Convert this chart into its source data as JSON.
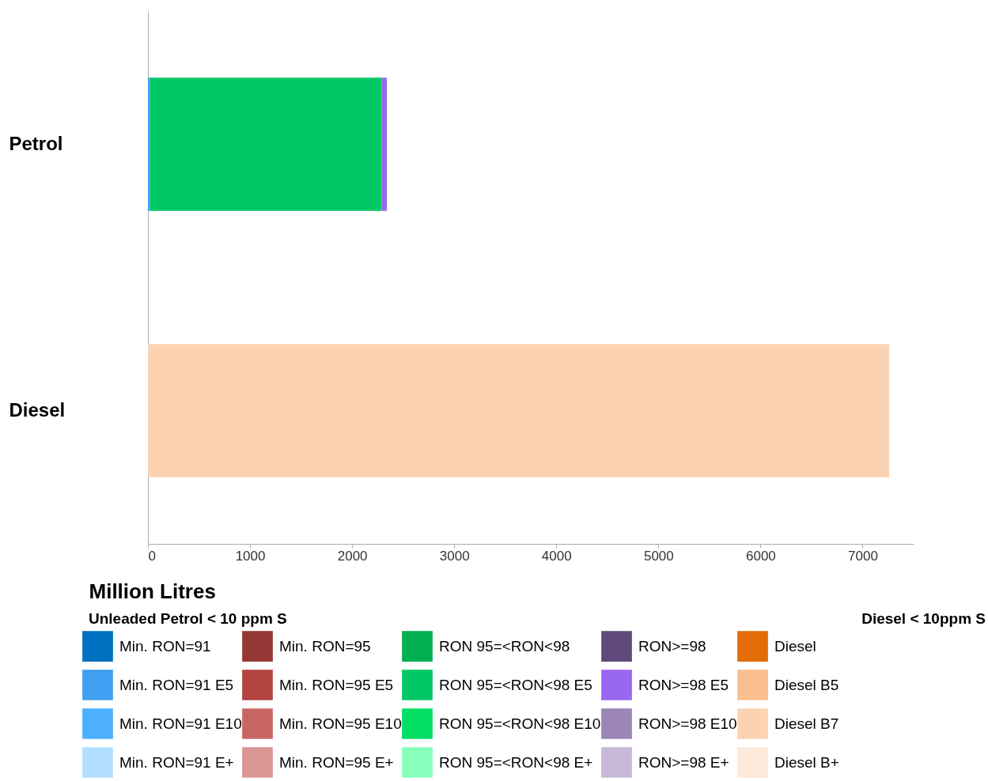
{
  "chart_data": {
    "type": "bar",
    "orientation": "horizontal",
    "stacked": true,
    "xlabel": "Million Litres",
    "categories": [
      "Petrol",
      "Diesel"
    ],
    "xlim": [
      0,
      7500
    ],
    "xticks": [
      0,
      1000,
      2000,
      3000,
      4000,
      5000,
      6000,
      7000
    ],
    "legend": "bottom",
    "grid": false,
    "annotations": [
      "Unleaded Petrol < 10 ppm S",
      "Diesel < 10ppm S"
    ],
    "series": [
      {
        "name": "Min. RON=91",
        "color": "#0070c0",
        "values": [
          null,
          null
        ]
      },
      {
        "name": "Min. RON=91 E5",
        "color": "#3f9ff0",
        "values": [
          20,
          null
        ]
      },
      {
        "name": "Min. RON=91 E10",
        "color": "#4db0ff",
        "values": [
          null,
          null
        ]
      },
      {
        "name": "Min. RON=91 E+",
        "color": "#b3deff",
        "values": [
          null,
          null
        ]
      },
      {
        "name": "Min. RON=95",
        "color": "#953735",
        "values": [
          null,
          null
        ]
      },
      {
        "name": "Min. RON=95 E5",
        "color": "#b44441",
        "values": [
          null,
          null
        ]
      },
      {
        "name": "Min. RON=95 E10",
        "color": "#c86562",
        "values": [
          null,
          null
        ]
      },
      {
        "name": "Min. RON=95 E+",
        "color": "#da9694",
        "values": [
          null,
          null
        ]
      },
      {
        "name": "RON 95=<RON<98",
        "color": "#00b050",
        "values": [
          null,
          null
        ]
      },
      {
        "name": "RON 95=<RON<98 E5",
        "color": "#00c864",
        "values": [
          2270,
          null
        ]
      },
      {
        "name": "RON 95=<RON<98 E10",
        "color": "#00de64",
        "values": [
          null,
          null
        ]
      },
      {
        "name": "RON 95=<RON<98 E+",
        "color": "#88ffbb",
        "values": [
          null,
          null
        ]
      },
      {
        "name": "RON>=98",
        "color": "#604a7b",
        "values": [
          null,
          null
        ]
      },
      {
        "name": "RON>=98 E5",
        "color": "#9966f0",
        "values": [
          50,
          null
        ]
      },
      {
        "name": "RON>=98 E10",
        "color": "#9c85b8",
        "values": [
          null,
          null
        ]
      },
      {
        "name": "RON>=98 E+",
        "color": "#c7b8d9",
        "values": [
          null,
          null
        ]
      },
      {
        "name": "Diesel",
        "color": "#e36c09",
        "values": [
          null,
          null
        ]
      },
      {
        "name": "Diesel B5",
        "color": "#fabf8f",
        "values": [
          null,
          null
        ]
      },
      {
        "name": "Diesel B7",
        "color": "#fbd3b3",
        "values": [
          null,
          7260
        ]
      },
      {
        "name": "Diesel B+",
        "color": "#fde9d9",
        "values": [
          null,
          null
        ]
      }
    ]
  }
}
